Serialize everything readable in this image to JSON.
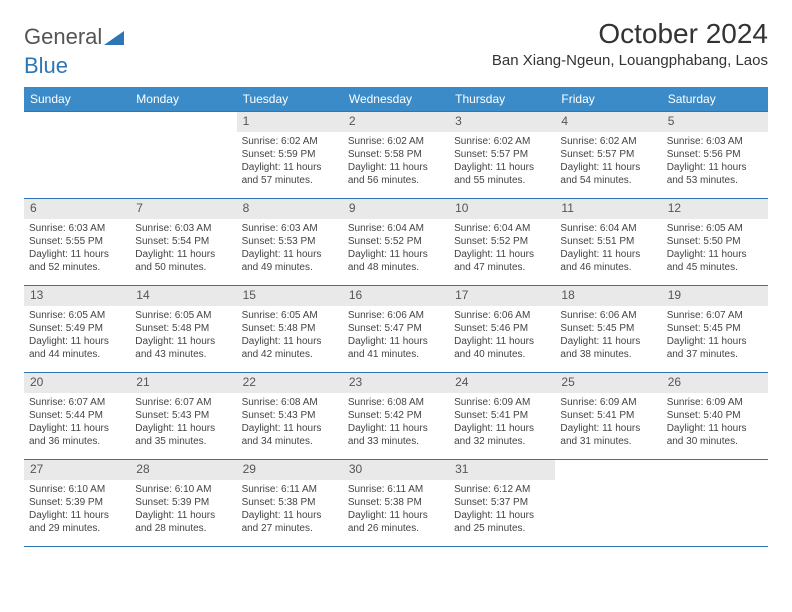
{
  "brand": {
    "word1": "General",
    "word2": "Blue"
  },
  "title": "October 2024",
  "location": "Ban Xiang-Ngeun, Louangphabang, Laos",
  "colors": {
    "header_bg": "#3b8bc8",
    "row_border": "#2e75b6",
    "daynum_bg": "#e9e9e9",
    "text": "#444444"
  },
  "days_of_week": [
    "Sunday",
    "Monday",
    "Tuesday",
    "Wednesday",
    "Thursday",
    "Friday",
    "Saturday"
  ],
  "first_weekday_index": 2,
  "days": [
    {
      "n": 1,
      "sr": "6:02 AM",
      "ss": "5:59 PM",
      "d": "11 hours and 57 minutes."
    },
    {
      "n": 2,
      "sr": "6:02 AM",
      "ss": "5:58 PM",
      "d": "11 hours and 56 minutes."
    },
    {
      "n": 3,
      "sr": "6:02 AM",
      "ss": "5:57 PM",
      "d": "11 hours and 55 minutes."
    },
    {
      "n": 4,
      "sr": "6:02 AM",
      "ss": "5:57 PM",
      "d": "11 hours and 54 minutes."
    },
    {
      "n": 5,
      "sr": "6:03 AM",
      "ss": "5:56 PM",
      "d": "11 hours and 53 minutes."
    },
    {
      "n": 6,
      "sr": "6:03 AM",
      "ss": "5:55 PM",
      "d": "11 hours and 52 minutes."
    },
    {
      "n": 7,
      "sr": "6:03 AM",
      "ss": "5:54 PM",
      "d": "11 hours and 50 minutes."
    },
    {
      "n": 8,
      "sr": "6:03 AM",
      "ss": "5:53 PM",
      "d": "11 hours and 49 minutes."
    },
    {
      "n": 9,
      "sr": "6:04 AM",
      "ss": "5:52 PM",
      "d": "11 hours and 48 minutes."
    },
    {
      "n": 10,
      "sr": "6:04 AM",
      "ss": "5:52 PM",
      "d": "11 hours and 47 minutes."
    },
    {
      "n": 11,
      "sr": "6:04 AM",
      "ss": "5:51 PM",
      "d": "11 hours and 46 minutes."
    },
    {
      "n": 12,
      "sr": "6:05 AM",
      "ss": "5:50 PM",
      "d": "11 hours and 45 minutes."
    },
    {
      "n": 13,
      "sr": "6:05 AM",
      "ss": "5:49 PM",
      "d": "11 hours and 44 minutes."
    },
    {
      "n": 14,
      "sr": "6:05 AM",
      "ss": "5:48 PM",
      "d": "11 hours and 43 minutes."
    },
    {
      "n": 15,
      "sr": "6:05 AM",
      "ss": "5:48 PM",
      "d": "11 hours and 42 minutes."
    },
    {
      "n": 16,
      "sr": "6:06 AM",
      "ss": "5:47 PM",
      "d": "11 hours and 41 minutes."
    },
    {
      "n": 17,
      "sr": "6:06 AM",
      "ss": "5:46 PM",
      "d": "11 hours and 40 minutes."
    },
    {
      "n": 18,
      "sr": "6:06 AM",
      "ss": "5:45 PM",
      "d": "11 hours and 38 minutes."
    },
    {
      "n": 19,
      "sr": "6:07 AM",
      "ss": "5:45 PM",
      "d": "11 hours and 37 minutes."
    },
    {
      "n": 20,
      "sr": "6:07 AM",
      "ss": "5:44 PM",
      "d": "11 hours and 36 minutes."
    },
    {
      "n": 21,
      "sr": "6:07 AM",
      "ss": "5:43 PM",
      "d": "11 hours and 35 minutes."
    },
    {
      "n": 22,
      "sr": "6:08 AM",
      "ss": "5:43 PM",
      "d": "11 hours and 34 minutes."
    },
    {
      "n": 23,
      "sr": "6:08 AM",
      "ss": "5:42 PM",
      "d": "11 hours and 33 minutes."
    },
    {
      "n": 24,
      "sr": "6:09 AM",
      "ss": "5:41 PM",
      "d": "11 hours and 32 minutes."
    },
    {
      "n": 25,
      "sr": "6:09 AM",
      "ss": "5:41 PM",
      "d": "11 hours and 31 minutes."
    },
    {
      "n": 26,
      "sr": "6:09 AM",
      "ss": "5:40 PM",
      "d": "11 hours and 30 minutes."
    },
    {
      "n": 27,
      "sr": "6:10 AM",
      "ss": "5:39 PM",
      "d": "11 hours and 29 minutes."
    },
    {
      "n": 28,
      "sr": "6:10 AM",
      "ss": "5:39 PM",
      "d": "11 hours and 28 minutes."
    },
    {
      "n": 29,
      "sr": "6:11 AM",
      "ss": "5:38 PM",
      "d": "11 hours and 27 minutes."
    },
    {
      "n": 30,
      "sr": "6:11 AM",
      "ss": "5:38 PM",
      "d": "11 hours and 26 minutes."
    },
    {
      "n": 31,
      "sr": "6:12 AM",
      "ss": "5:37 PM",
      "d": "11 hours and 25 minutes."
    }
  ],
  "labels": {
    "sunrise": "Sunrise:",
    "sunset": "Sunset:",
    "daylight": "Daylight:"
  }
}
